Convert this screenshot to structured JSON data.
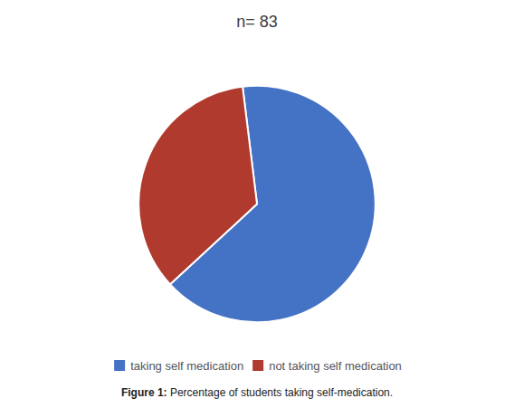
{
  "chart_data": {
    "type": "pie",
    "title": "n= 83",
    "categories": [
      "taking self medication",
      "not taking self medication"
    ],
    "values": [
      65.06,
      34.94
    ],
    "colors": [
      "#4472C4",
      "#B03A2E"
    ],
    "legend": "bottom",
    "annotations": [
      "Figure 1:",
      "Percentage of students taking self-medication."
    ]
  }
}
